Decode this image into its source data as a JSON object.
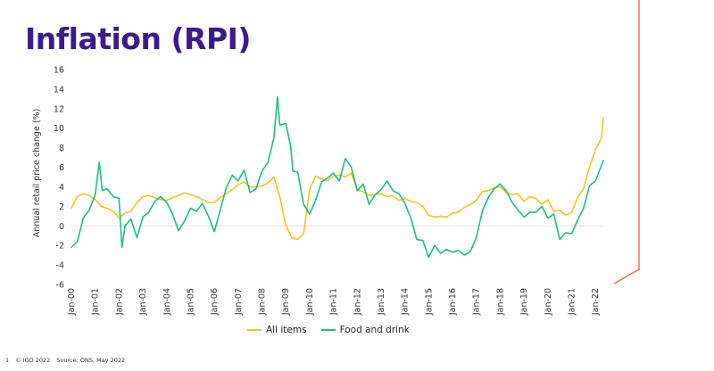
{
  "title": "Inflation (RPI)",
  "footer": {
    "page_number": "1",
    "copyright": "© IGD 2022",
    "source": "Source: ONS, May 2022"
  },
  "colors": {
    "title": "#3c1a8b",
    "all_items": "#f3c421",
    "food_and_drink": "#1fbc86",
    "accent_line": "#f0522b",
    "grid_zero": "#e4e4e4"
  },
  "chart_data": {
    "type": "line",
    "ylabel": "Annual retail price change (%)",
    "xlabel": "",
    "ylim": [
      -6,
      16
    ],
    "yticks": [
      -6,
      -4,
      -2,
      0,
      2,
      4,
      6,
      8,
      10,
      12,
      14,
      16
    ],
    "x_tick_labels": [
      "Jan-00",
      "Jan-01",
      "Jan-02",
      "Jan-03",
      "Jan-04",
      "Jan-05",
      "Jan-06",
      "Jan-07",
      "Jan-08",
      "Jan-09",
      "Jan-10",
      "Jan-11",
      "Jan-12",
      "Jan-13",
      "Jan-14",
      "Jan-15",
      "Jan-16",
      "Jan-17",
      "Jan-18",
      "Jan-19",
      "Jan-20",
      "Jan-21",
      "Jan-22"
    ],
    "x_start_year": 2000,
    "x_end": 2022.33,
    "legend": "bottom",
    "series": [
      {
        "name": "All items",
        "points": [
          [
            2000.0,
            1.8
          ],
          [
            2000.25,
            3.0
          ],
          [
            2000.5,
            3.3
          ],
          [
            2000.75,
            3.1
          ],
          [
            2001.0,
            2.7
          ],
          [
            2001.25,
            2.0
          ],
          [
            2001.5,
            1.8
          ],
          [
            2001.75,
            1.5
          ],
          [
            2002.0,
            0.8
          ],
          [
            2002.25,
            1.3
          ],
          [
            2002.5,
            1.5
          ],
          [
            2002.75,
            2.4
          ],
          [
            2003.0,
            3.0
          ],
          [
            2003.25,
            3.1
          ],
          [
            2003.5,
            2.9
          ],
          [
            2003.75,
            2.7
          ],
          [
            2004.0,
            2.6
          ],
          [
            2004.25,
            2.9
          ],
          [
            2004.5,
            3.1
          ],
          [
            2004.75,
            3.4
          ],
          [
            2005.0,
            3.2
          ],
          [
            2005.25,
            3.0
          ],
          [
            2005.5,
            2.7
          ],
          [
            2005.75,
            2.4
          ],
          [
            2006.0,
            2.4
          ],
          [
            2006.25,
            2.9
          ],
          [
            2006.5,
            3.3
          ],
          [
            2006.75,
            3.7
          ],
          [
            2007.0,
            4.2
          ],
          [
            2007.25,
            4.5
          ],
          [
            2007.5,
            4.0
          ],
          [
            2007.75,
            4.0
          ],
          [
            2008.0,
            4.1
          ],
          [
            2008.25,
            4.4
          ],
          [
            2008.5,
            5.0
          ],
          [
            2008.75,
            3.0
          ],
          [
            2009.0,
            0.1
          ],
          [
            2009.25,
            -1.2
          ],
          [
            2009.5,
            -1.4
          ],
          [
            2009.75,
            -0.8
          ],
          [
            2010.0,
            3.7
          ],
          [
            2010.25,
            5.1
          ],
          [
            2010.5,
            4.8
          ],
          [
            2010.75,
            4.6
          ],
          [
            2011.0,
            5.1
          ],
          [
            2011.25,
            5.2
          ],
          [
            2011.5,
            5.0
          ],
          [
            2011.75,
            5.4
          ],
          [
            2012.0,
            3.7
          ],
          [
            2012.25,
            3.5
          ],
          [
            2012.5,
            3.1
          ],
          [
            2012.75,
            3.2
          ],
          [
            2013.0,
            3.3
          ],
          [
            2013.25,
            3.0
          ],
          [
            2013.5,
            3.1
          ],
          [
            2013.75,
            2.6
          ],
          [
            2014.0,
            2.8
          ],
          [
            2014.25,
            2.5
          ],
          [
            2014.5,
            2.4
          ],
          [
            2014.75,
            2.0
          ],
          [
            2015.0,
            1.1
          ],
          [
            2015.25,
            0.9
          ],
          [
            2015.5,
            1.0
          ],
          [
            2015.75,
            0.9
          ],
          [
            2016.0,
            1.3
          ],
          [
            2016.25,
            1.4
          ],
          [
            2016.5,
            1.9
          ],
          [
            2016.75,
            2.2
          ],
          [
            2017.0,
            2.6
          ],
          [
            2017.25,
            3.5
          ],
          [
            2017.5,
            3.6
          ],
          [
            2017.75,
            3.9
          ],
          [
            2018.0,
            4.0
          ],
          [
            2018.25,
            3.4
          ],
          [
            2018.5,
            3.2
          ],
          [
            2018.75,
            3.3
          ],
          [
            2019.0,
            2.5
          ],
          [
            2019.25,
            3.0
          ],
          [
            2019.5,
            2.8
          ],
          [
            2019.75,
            2.2
          ],
          [
            2020.0,
            2.7
          ],
          [
            2020.25,
            1.5
          ],
          [
            2020.5,
            1.6
          ],
          [
            2020.75,
            1.1
          ],
          [
            2021.0,
            1.4
          ],
          [
            2021.25,
            2.9
          ],
          [
            2021.5,
            3.8
          ],
          [
            2021.75,
            6.0
          ],
          [
            2022.0,
            7.8
          ],
          [
            2022.25,
            9.0
          ],
          [
            2022.33,
            11.1
          ]
        ]
      },
      {
        "name": "Food and drink",
        "points": [
          [
            2000.0,
            -2.2
          ],
          [
            2000.25,
            -1.6
          ],
          [
            2000.5,
            0.8
          ],
          [
            2000.75,
            1.6
          ],
          [
            2001.0,
            3.2
          ],
          [
            2001.17,
            6.5
          ],
          [
            2001.3,
            3.6
          ],
          [
            2001.5,
            3.8
          ],
          [
            2001.75,
            3.0
          ],
          [
            2002.0,
            2.8
          ],
          [
            2002.12,
            -2.2
          ],
          [
            2002.25,
            0.0
          ],
          [
            2002.5,
            0.7
          ],
          [
            2002.75,
            -1.2
          ],
          [
            2003.0,
            0.9
          ],
          [
            2003.25,
            1.4
          ],
          [
            2003.5,
            2.5
          ],
          [
            2003.75,
            3.0
          ],
          [
            2004.0,
            2.4
          ],
          [
            2004.25,
            1.2
          ],
          [
            2004.5,
            -0.5
          ],
          [
            2004.75,
            0.5
          ],
          [
            2005.0,
            1.8
          ],
          [
            2005.25,
            1.5
          ],
          [
            2005.5,
            2.3
          ],
          [
            2005.75,
            1.0
          ],
          [
            2006.0,
            -0.6
          ],
          [
            2006.25,
            1.6
          ],
          [
            2006.5,
            3.9
          ],
          [
            2006.75,
            5.2
          ],
          [
            2007.0,
            4.6
          ],
          [
            2007.25,
            5.7
          ],
          [
            2007.5,
            3.4
          ],
          [
            2007.75,
            3.8
          ],
          [
            2008.0,
            5.6
          ],
          [
            2008.25,
            6.5
          ],
          [
            2008.5,
            9.0
          ],
          [
            2008.65,
            13.2
          ],
          [
            2008.75,
            10.3
          ],
          [
            2009.0,
            10.5
          ],
          [
            2009.2,
            8.2
          ],
          [
            2009.3,
            5.6
          ],
          [
            2009.5,
            5.5
          ],
          [
            2009.75,
            2.2
          ],
          [
            2010.0,
            1.2
          ],
          [
            2010.25,
            2.6
          ],
          [
            2010.5,
            4.5
          ],
          [
            2010.75,
            4.9
          ],
          [
            2011.0,
            5.4
          ],
          [
            2011.25,
            4.6
          ],
          [
            2011.5,
            6.9
          ],
          [
            2011.75,
            6.0
          ],
          [
            2012.0,
            3.6
          ],
          [
            2012.25,
            4.3
          ],
          [
            2012.5,
            2.2
          ],
          [
            2012.75,
            3.2
          ],
          [
            2013.0,
            3.7
          ],
          [
            2013.25,
            4.6
          ],
          [
            2013.5,
            3.6
          ],
          [
            2013.75,
            3.3
          ],
          [
            2014.0,
            2.3
          ],
          [
            2014.25,
            0.8
          ],
          [
            2014.5,
            -1.4
          ],
          [
            2014.75,
            -1.5
          ],
          [
            2015.0,
            -3.2
          ],
          [
            2015.25,
            -2.0
          ],
          [
            2015.5,
            -2.8
          ],
          [
            2015.75,
            -2.4
          ],
          [
            2016.0,
            -2.7
          ],
          [
            2016.25,
            -2.5
          ],
          [
            2016.5,
            -3.0
          ],
          [
            2016.75,
            -2.6
          ],
          [
            2017.0,
            -1.2
          ],
          [
            2017.25,
            1.5
          ],
          [
            2017.5,
            2.9
          ],
          [
            2017.75,
            3.8
          ],
          [
            2018.0,
            4.3
          ],
          [
            2018.25,
            3.6
          ],
          [
            2018.5,
            2.4
          ],
          [
            2018.75,
            1.6
          ],
          [
            2019.0,
            0.9
          ],
          [
            2019.25,
            1.4
          ],
          [
            2019.5,
            1.4
          ],
          [
            2019.75,
            2.0
          ],
          [
            2020.0,
            0.8
          ],
          [
            2020.25,
            1.2
          ],
          [
            2020.5,
            -1.4
          ],
          [
            2020.75,
            -0.7
          ],
          [
            2021.0,
            -0.8
          ],
          [
            2021.25,
            0.6
          ],
          [
            2021.5,
            1.8
          ],
          [
            2021.75,
            4.1
          ],
          [
            2022.0,
            4.6
          ],
          [
            2022.33,
            6.7
          ]
        ]
      }
    ]
  }
}
